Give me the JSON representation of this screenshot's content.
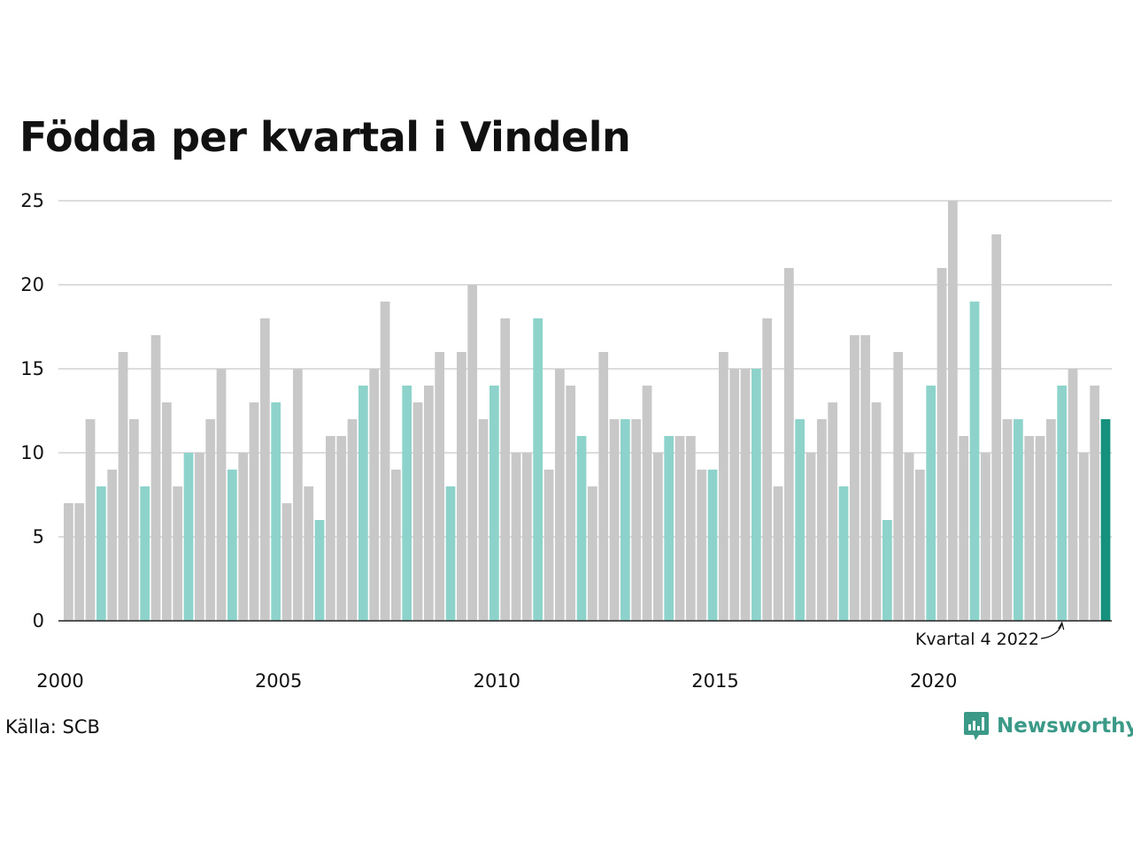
{
  "title": "Födda per kvartal i Vindeln",
  "source": "Källa: SCB",
  "brand": "Newsworthy",
  "colors": {
    "default_bar": "#c8c8c8",
    "q4_bar": "#8dd3cb",
    "highlight_bar": "#16917e",
    "grid": "#dddddd",
    "axis": "#222222"
  },
  "chart_data": {
    "type": "bar",
    "title": "Födda per kvartal i Vindeln",
    "xlabel": "",
    "ylabel": "",
    "ylim": [
      0,
      25
    ],
    "yticks": [
      0,
      5,
      10,
      15,
      20,
      25
    ],
    "xticks": [
      "2000",
      "2005",
      "2010",
      "2015",
      "2020"
    ],
    "grid": true,
    "start_year": 2000,
    "values": [
      7,
      7,
      12,
      8,
      9,
      16,
      12,
      8,
      17,
      13,
      8,
      10,
      10,
      12,
      15,
      9,
      10,
      13,
      18,
      13,
      7,
      15,
      8,
      6,
      11,
      11,
      12,
      14,
      15,
      19,
      9,
      14,
      13,
      14,
      16,
      8,
      16,
      20,
      12,
      14,
      18,
      10,
      10,
      18,
      9,
      15,
      14,
      11,
      8,
      16,
      12,
      12,
      12,
      14,
      10,
      11,
      11,
      11,
      9,
      9,
      16,
      15,
      15,
      15,
      18,
      8,
      21,
      12,
      10,
      12,
      13,
      8,
      17,
      17,
      13,
      6,
      16,
      10,
      9,
      14,
      21,
      25,
      11,
      19,
      10,
      23,
      12,
      12,
      11,
      11,
      12,
      14,
      15,
      10,
      14,
      12
    ],
    "annotation": {
      "label": "Kvartal 4 2022",
      "target_index": 91
    }
  }
}
